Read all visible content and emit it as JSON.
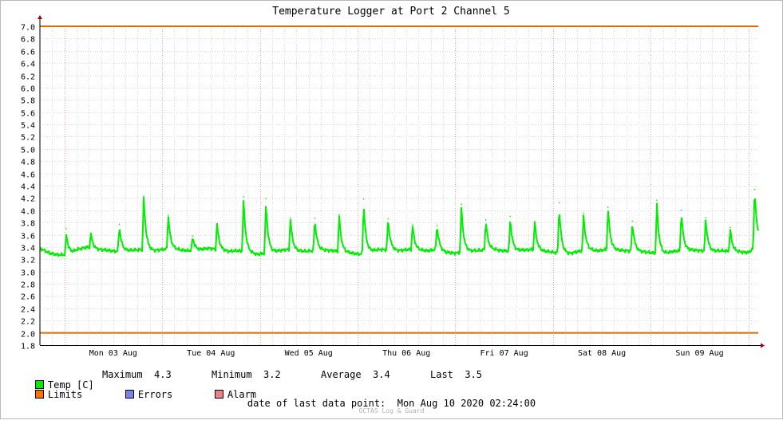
{
  "chart_data": {
    "type": "line",
    "title": "Temperature Logger at Port 2 Channel 5",
    "xlabel": "",
    "ylabel": "",
    "ylim": [
      1.8,
      7.0
    ],
    "y_ticks": [
      "1.8",
      "2.0",
      "2.2",
      "2.4",
      "2.6",
      "2.8",
      "3.0",
      "3.2",
      "3.4",
      "3.6",
      "3.8",
      "4.0",
      "4.2",
      "4.4",
      "4.6",
      "4.8",
      "5.0",
      "5.2",
      "5.4",
      "5.6",
      "5.8",
      "6.0",
      "6.2",
      "6.4",
      "6.6",
      "6.8",
      "7.0"
    ],
    "x_labels": [
      "Mon 03 Aug",
      "Tue 04 Aug",
      "Wed 05 Aug",
      "Thu 06 Aug",
      "Fri 07 Aug",
      "Sat 08 Aug",
      "Sun 09 Aug"
    ],
    "x_range": [
      "2020-08-02 18:00",
      "2020-08-10 02:24"
    ],
    "grid": true,
    "legend_placement": "bottom",
    "limits": [
      2.0,
      7.0
    ],
    "baseline": 3.35,
    "series": [
      {
        "name": "Temp [C]",
        "color": "#00ee00",
        "base": [
          3.38,
          3.3,
          3.27,
          3.28,
          3.36,
          3.4,
          3.36,
          3.35,
          3.33,
          3.34,
          3.35,
          3.36,
          3.34,
          3.36,
          3.37,
          3.35,
          3.34,
          3.36,
          3.38,
          3.35,
          3.33,
          3.34,
          3.31,
          3.28,
          3.3,
          3.33,
          3.36,
          3.34,
          3.33,
          3.34,
          3.35,
          3.34,
          3.32,
          3.3,
          3.28,
          3.33,
          3.36,
          3.35,
          3.34,
          3.36,
          3.35,
          3.34,
          3.36,
          3.31,
          3.3,
          3.33,
          3.34,
          3.35,
          3.36,
          3.34,
          3.33,
          3.35,
          3.36,
          3.34,
          3.32,
          3.3,
          3.29,
          3.33,
          3.35,
          3.34,
          3.36,
          3.35,
          3.34,
          3.33,
          3.32,
          3.3,
          3.29,
          3.33,
          3.34,
          3.35,
          3.34,
          3.33,
          3.34,
          3.33,
          3.32,
          3.31,
          3.46
        ],
        "spikes": [
          {
            "t": "2020-08-03 00:30",
            "value": 3.7
          },
          {
            "t": "2020-08-03 06:30",
            "value": 3.59
          },
          {
            "t": "2020-08-03 13:30",
            "value": 3.77
          },
          {
            "t": "2020-08-03 19:30",
            "value": 4.23
          },
          {
            "t": "2020-08-04 01:30",
            "value": 3.92
          },
          {
            "t": "2020-08-04 07:30",
            "value": 3.58
          },
          {
            "t": "2020-08-04 13:30",
            "value": 3.77
          },
          {
            "t": "2020-08-04 20:00",
            "value": 4.22
          },
          {
            "t": "2020-08-05 01:30",
            "value": 4.19
          },
          {
            "t": "2020-08-05 07:30",
            "value": 3.88
          },
          {
            "t": "2020-08-05 13:30",
            "value": 3.87
          },
          {
            "t": "2020-08-05 19:30",
            "value": 3.93
          },
          {
            "t": "2020-08-06 01:30",
            "value": 4.18
          },
          {
            "t": "2020-08-06 07:30",
            "value": 3.86
          },
          {
            "t": "2020-08-06 13:30",
            "value": 3.76
          },
          {
            "t": "2020-08-06 19:30",
            "value": 3.75
          },
          {
            "t": "2020-08-07 01:30",
            "value": 4.1
          },
          {
            "t": "2020-08-07 07:30",
            "value": 3.84
          },
          {
            "t": "2020-08-07 13:30",
            "value": 3.9
          },
          {
            "t": "2020-08-07 19:30",
            "value": 3.82
          },
          {
            "t": "2020-08-08 01:30",
            "value": 4.12
          },
          {
            "t": "2020-08-08 07:30",
            "value": 3.95
          },
          {
            "t": "2020-08-08 13:30",
            "value": 4.05
          },
          {
            "t": "2020-08-08 19:30",
            "value": 3.82
          },
          {
            "t": "2020-08-09 01:30",
            "value": 4.16
          },
          {
            "t": "2020-08-09 07:30",
            "value": 4.0
          },
          {
            "t": "2020-08-09 13:30",
            "value": 3.88
          },
          {
            "t": "2020-08-09 19:30",
            "value": 3.72
          },
          {
            "t": "2020-08-10 01:30",
            "value": 4.34
          }
        ]
      }
    ]
  },
  "legend": {
    "items": [
      {
        "label": "Temp [C]",
        "color": "#00ee00"
      },
      {
        "label": "Limits",
        "color": "#ff7200"
      },
      {
        "label": "Errors",
        "color": "#7a82f0"
      },
      {
        "label": "Alarm",
        "color": "#f08080"
      }
    ],
    "stats": {
      "maximum_label": "Maximum",
      "maximum_value": "4.3",
      "minimum_label": "Minimum",
      "minimum_value": "3.2",
      "average_label": "Average",
      "average_value": "3.4",
      "last_label": "Last",
      "last_value": "3.5"
    }
  },
  "last_data_point_label": "date of last data point:",
  "last_data_point_value": "Mon Aug 10 2020 02:24:00",
  "watermark": "OCTAS Log & Guard",
  "colors": {
    "background": "#ffffff",
    "grid_minor": "#d8d8d8",
    "grid_major": "#f0a0a0",
    "axis": "#000000",
    "arrow": "#a00000",
    "limit_line": "#e06c00",
    "series": "#00ee00"
  }
}
